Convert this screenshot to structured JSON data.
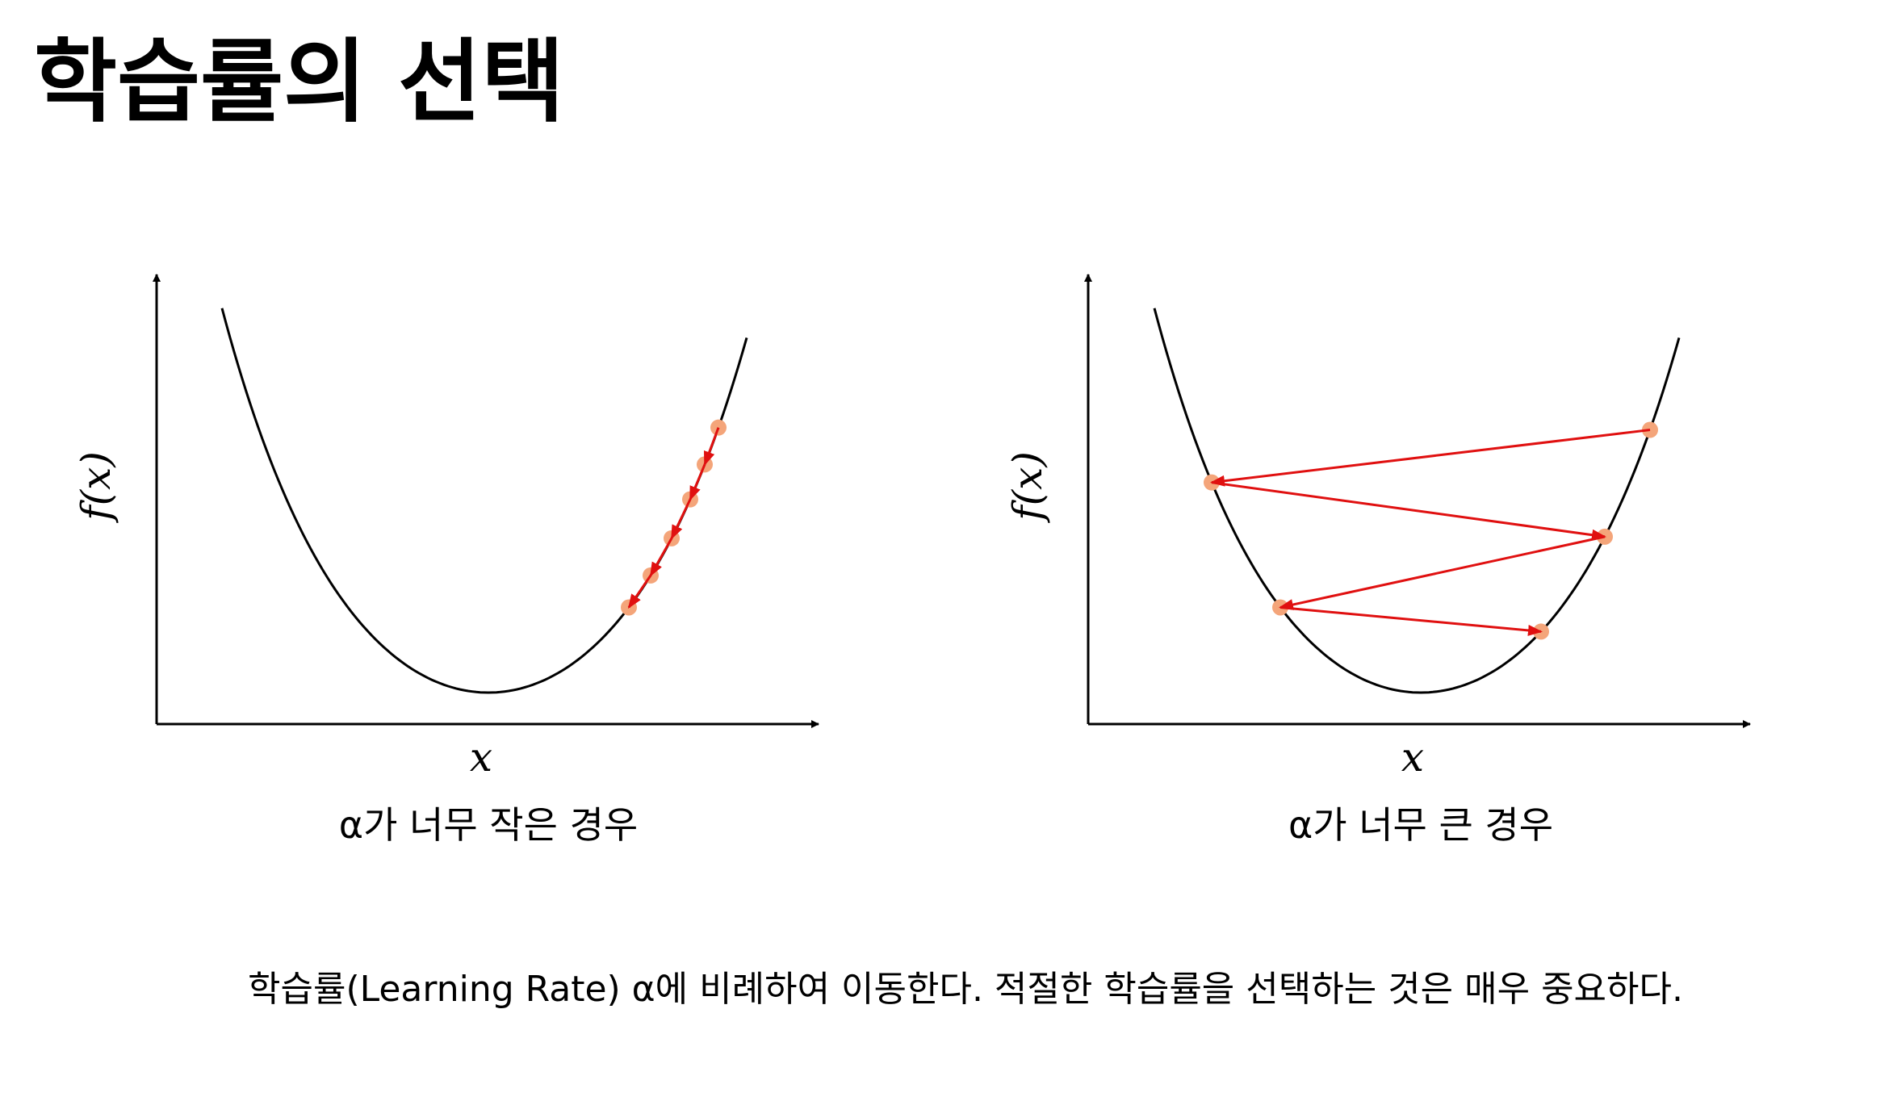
{
  "header": {
    "title": "학습률의 선택"
  },
  "panels": [
    {
      "y_label": "f(x)",
      "x_label": "x",
      "caption": "α가 너무 작은 경우"
    },
    {
      "y_label": "f(x)",
      "x_label": "x",
      "caption": "α가 너무 큰 경우"
    }
  ],
  "footer": {
    "text": "학습률(Learning Rate) α에 비례하여 이동한다. 적절한 학습률을 선택하는 것은 매우 중요하다."
  }
}
